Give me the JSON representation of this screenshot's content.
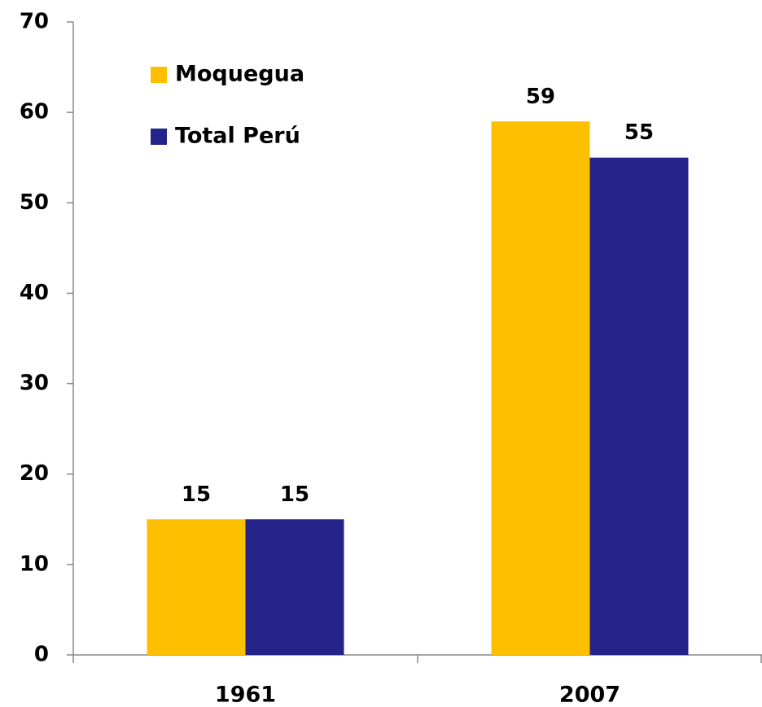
{
  "chart_data": {
    "type": "bar",
    "categories": [
      "1961",
      "2007"
    ],
    "series": [
      {
        "name": "Moquegua",
        "color": "#fdbf00",
        "values": [
          15,
          59
        ]
      },
      {
        "name": "Total Perú",
        "color": "#23238a",
        "values": [
          15,
          55
        ]
      }
    ],
    "ylim": [
      0,
      70
    ],
    "yticks": [
      0,
      10,
      20,
      30,
      40,
      50,
      60,
      70
    ],
    "data_labels": true,
    "legend": "upper left"
  }
}
